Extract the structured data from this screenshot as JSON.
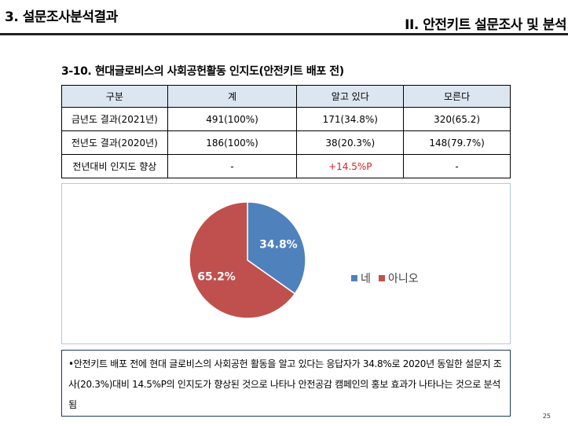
{
  "header": {
    "left_title": "3. 설문조사분석결과",
    "right_title": "II. 안전키트 설문조사 및 분석"
  },
  "section_title": "3-10. 현대글로비스의 사회공헌활동 인지도(안전키트 배포 전)",
  "table": {
    "headers": [
      "구분",
      "계",
      "알고 있다",
      "모른다"
    ],
    "rows": [
      [
        "금년도 결과(2021년)",
        "491(100%)",
        "171(34.8%)",
        "320(65.2)"
      ],
      [
        "전년도 결과(2020년)",
        "186(100%)",
        "38(20.3%)",
        "148(79.7%)"
      ],
      [
        "전년대비 인지도 향상",
        "-",
        "+14.5%P",
        "-"
      ]
    ]
  },
  "chart_data": {
    "type": "pie",
    "categories": [
      "네",
      "아니오"
    ],
    "values": [
      34.8,
      65.2
    ],
    "data_labels": [
      "34.8%",
      "65.2%"
    ],
    "colors": [
      "#4f81bd",
      "#c0504d"
    ],
    "legend": "right"
  },
  "note": "•안전키트 배포 전에 현대 글로비스의 사회공헌 활동을 알고 있다는 응답자가 34.8%로 2020년 동일한 설문지 조사(20.3%)대비 14.5%P의 인지도가 향상된 것으로 나타나 안전공감 캠페인의 홍보 효과가 나타나는 것으로 분석됨",
  "page_number": "25"
}
